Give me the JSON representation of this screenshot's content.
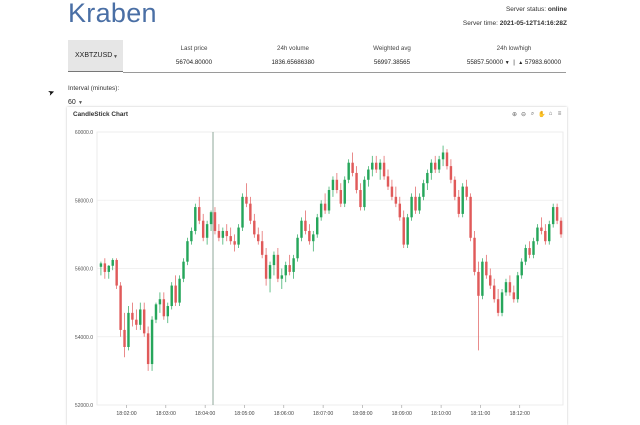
{
  "header": {
    "brand": "Kraben",
    "server_status_label": "Server status:",
    "server_status_value": "online",
    "server_time_label": "Server time:",
    "server_time_value": "2021-05-12T14:16:28Z"
  },
  "pair_selector": {
    "value": "XXBTZUSD"
  },
  "stats": {
    "last_price": {
      "label": "Last price",
      "value": "56704.80000"
    },
    "volume_24h": {
      "label": "24h volume",
      "value": "1836.65686380"
    },
    "weighted_avg": {
      "label": "Weighted avg",
      "value": "56997.38565"
    },
    "low_high_24h": {
      "label": "24h low/high",
      "low": "55857.50000",
      "high": "57983.60000",
      "low_arrow": "▼",
      "high_arrow": "▲"
    }
  },
  "interval": {
    "label": "Interval (minutes):",
    "value": "60"
  },
  "chart": {
    "title": "CandleStick Chart",
    "toolbar_icons": [
      "zoom-in-icon",
      "zoom-out-icon",
      "magnifier-icon",
      "pan-hand-icon",
      "home-icon",
      "menu-icon"
    ],
    "colors": {
      "up": "#26a65b",
      "down": "#e05a5a",
      "crosshair": "#8fa89a"
    }
  },
  "chart_data": {
    "type": "candlestick",
    "title": "CandleStick Chart",
    "ylim": [
      52000,
      60000
    ],
    "y_ticks": [
      "52000.0",
      "54000.0",
      "56000.0",
      "58000.0",
      "60000.0"
    ],
    "x_ticks": [
      "18:02:00",
      "18:03:00",
      "18:04:00",
      "18:05:00",
      "18:06:00",
      "18:07:00",
      "18:08:00",
      "18:09:00",
      "18:10:00",
      "18:11:00",
      "18:12:00"
    ],
    "x_range_minutes": [
      1.25,
      13.1
    ],
    "crosshair_x_minutes": 4.2,
    "candles": [
      [
        1.35,
        56050,
        56200,
        55800,
        56150
      ],
      [
        1.45,
        56150,
        56300,
        55700,
        55900
      ],
      [
        1.55,
        55900,
        56100,
        55700,
        56080
      ],
      [
        1.65,
        56080,
        56300,
        55950,
        56250
      ],
      [
        1.75,
        56250,
        56300,
        55400,
        55500
      ],
      [
        1.85,
        55500,
        55600,
        54000,
        54200
      ],
      [
        1.95,
        54200,
        54700,
        53400,
        53700
      ],
      [
        2.05,
        53700,
        54900,
        53600,
        54700
      ],
      [
        2.15,
        54700,
        55000,
        54300,
        54500
      ],
      [
        2.25,
        54500,
        54800,
        54200,
        54350
      ],
      [
        2.35,
        54350,
        55000,
        54200,
        54800
      ],
      [
        2.45,
        54800,
        55000,
        54000,
        54100
      ],
      [
        2.55,
        54100,
        54300,
        53000,
        53200
      ],
      [
        2.65,
        53200,
        54600,
        53000,
        54500
      ],
      [
        2.75,
        54500,
        55000,
        54400,
        54950
      ],
      [
        2.85,
        54950,
        55300,
        54700,
        55100
      ],
      [
        2.95,
        55100,
        55300,
        54500,
        54600
      ],
      [
        3.05,
        54600,
        55000,
        54400,
        54900
      ],
      [
        3.15,
        54900,
        55600,
        54800,
        55500
      ],
      [
        3.25,
        55500,
        55800,
        54900,
        55000
      ],
      [
        3.35,
        55000,
        55800,
        54900,
        55700
      ],
      [
        3.45,
        55700,
        56300,
        55600,
        56200
      ],
      [
        3.55,
        56200,
        56900,
        56100,
        56800
      ],
      [
        3.65,
        56800,
        57200,
        56700,
        57100
      ],
      [
        3.75,
        57100,
        57900,
        57000,
        57800
      ],
      [
        3.85,
        57800,
        58100,
        57300,
        57400
      ],
      [
        3.95,
        57400,
        57600,
        56800,
        56900
      ],
      [
        4.05,
        56900,
        57400,
        56700,
        57300
      ],
      [
        4.15,
        57300,
        57700,
        57100,
        57650
      ],
      [
        4.25,
        57650,
        57800,
        57000,
        57100
      ],
      [
        4.35,
        57100,
        57300,
        56800,
        56900
      ],
      [
        4.45,
        56900,
        57200,
        56700,
        57100
      ],
      [
        4.55,
        57100,
        57300,
        56800,
        56950
      ],
      [
        4.65,
        56950,
        57200,
        56700,
        56800
      ],
      [
        4.75,
        56800,
        57000,
        56500,
        56700
      ],
      [
        4.85,
        56700,
        57300,
        56600,
        57200
      ],
      [
        4.95,
        57200,
        58200,
        57100,
        58100
      ],
      [
        5.05,
        58100,
        58500,
        57800,
        57900
      ],
      [
        5.15,
        57900,
        58100,
        57300,
        57400
      ],
      [
        5.25,
        57400,
        57600,
        56900,
        57000
      ],
      [
        5.35,
        57000,
        57200,
        56700,
        56800
      ],
      [
        5.45,
        56800,
        57100,
        56300,
        56400
      ],
      [
        5.55,
        56400,
        56600,
        55500,
        55700
      ],
      [
        5.65,
        55700,
        56200,
        55300,
        56100
      ],
      [
        5.75,
        56100,
        56500,
        55800,
        56400
      ],
      [
        5.85,
        56400,
        56600,
        55600,
        55700
      ],
      [
        5.95,
        55700,
        56000,
        55400,
        55800
      ],
      [
        6.05,
        55800,
        56200,
        55600,
        56100
      ],
      [
        6.15,
        56100,
        56400,
        55800,
        55900
      ],
      [
        6.25,
        55900,
        56400,
        55700,
        56300
      ],
      [
        6.35,
        56300,
        57000,
        56200,
        56900
      ],
      [
        6.45,
        56900,
        57500,
        56800,
        57400
      ],
      [
        6.55,
        57400,
        57700,
        57000,
        57100
      ],
      [
        6.65,
        57100,
        57300,
        56700,
        56800
      ],
      [
        6.75,
        56800,
        57100,
        56500,
        57000
      ],
      [
        6.85,
        57000,
        57600,
        56900,
        57500
      ],
      [
        6.95,
        57500,
        58000,
        57400,
        57900
      ],
      [
        7.05,
        57900,
        58200,
        57600,
        57700
      ],
      [
        7.15,
        57700,
        58400,
        57600,
        58300
      ],
      [
        7.25,
        58300,
        58700,
        58100,
        58600
      ],
      [
        7.35,
        58600,
        58800,
        58200,
        58300
      ],
      [
        7.45,
        58300,
        58500,
        57800,
        57900
      ],
      [
        7.55,
        57900,
        58700,
        57800,
        58600
      ],
      [
        7.65,
        58600,
        59200,
        58500,
        59100
      ],
      [
        7.75,
        59100,
        59400,
        58700,
        58800
      ],
      [
        7.85,
        58800,
        59000,
        58200,
        58300
      ],
      [
        7.95,
        58300,
        58500,
        57700,
        57800
      ],
      [
        8.05,
        57800,
        58700,
        57700,
        58600
      ],
      [
        8.15,
        58600,
        59000,
        58400,
        58900
      ],
      [
        8.25,
        58900,
        59300,
        58700,
        59100
      ],
      [
        8.35,
        59100,
        59300,
        58800,
        58900
      ],
      [
        8.45,
        58900,
        59200,
        58600,
        59100
      ],
      [
        8.55,
        59100,
        59300,
        58600,
        58700
      ],
      [
        8.65,
        58700,
        58900,
        58300,
        58400
      ],
      [
        8.75,
        58400,
        58600,
        58000,
        58100
      ],
      [
        8.85,
        58100,
        58400,
        57800,
        57900
      ],
      [
        8.95,
        57900,
        58100,
        57400,
        57500
      ],
      [
        9.05,
        57500,
        57700,
        56600,
        56700
      ],
      [
        9.15,
        56700,
        57600,
        56600,
        57500
      ],
      [
        9.25,
        57500,
        58200,
        57400,
        58100
      ],
      [
        9.35,
        58100,
        58400,
        57600,
        57700
      ],
      [
        9.45,
        57700,
        58200,
        57600,
        58100
      ],
      [
        9.55,
        58100,
        58600,
        58000,
        58500
      ],
      [
        9.65,
        58500,
        58900,
        58300,
        58800
      ],
      [
        9.75,
        58800,
        59200,
        58600,
        59100
      ],
      [
        9.85,
        59100,
        59300,
        58800,
        58900
      ],
      [
        9.95,
        58900,
        59300,
        58800,
        59200
      ],
      [
        10.05,
        59200,
        59600,
        59000,
        59400
      ],
      [
        10.15,
        59400,
        59500,
        58900,
        59000
      ],
      [
        10.25,
        59000,
        59200,
        58500,
        58600
      ],
      [
        10.35,
        58600,
        58700,
        58000,
        58100
      ],
      [
        10.45,
        58100,
        58300,
        57500,
        57600
      ],
      [
        10.55,
        57600,
        58500,
        57500,
        58400
      ],
      [
        10.65,
        58400,
        58600,
        58000,
        58100
      ],
      [
        10.75,
        58100,
        58200,
        56800,
        56900
      ],
      [
        10.85,
        56900,
        57100,
        55800,
        55900
      ],
      [
        10.95,
        55900,
        56200,
        53600,
        55200
      ],
      [
        11.05,
        55200,
        56300,
        55100,
        56200
      ],
      [
        11.15,
        56200,
        56400,
        55700,
        55800
      ],
      [
        11.25,
        55800,
        56000,
        55400,
        55500
      ],
      [
        11.35,
        55500,
        55700,
        55000,
        55100
      ],
      [
        11.45,
        55100,
        55400,
        54600,
        54700
      ],
      [
        11.55,
        54700,
        55400,
        54600,
        55300
      ],
      [
        11.65,
        55300,
        55700,
        55200,
        55600
      ],
      [
        11.75,
        55600,
        55800,
        55200,
        55300
      ],
      [
        11.85,
        55300,
        55500,
        55000,
        55100
      ],
      [
        11.95,
        55100,
        55900,
        55000,
        55800
      ],
      [
        12.05,
        55800,
        56300,
        55700,
        56200
      ],
      [
        12.15,
        56200,
        56700,
        56100,
        56600
      ],
      [
        12.25,
        56600,
        56800,
        56300,
        56400
      ],
      [
        12.35,
        56400,
        56900,
        56300,
        56800
      ],
      [
        12.45,
        56800,
        57300,
        56700,
        57200
      ],
      [
        12.55,
        57200,
        57500,
        57000,
        57100
      ],
      [
        12.65,
        57100,
        57300,
        56700,
        56800
      ],
      [
        12.75,
        56800,
        57400,
        56700,
        57300
      ],
      [
        12.85,
        57300,
        57900,
        57200,
        57800
      ],
      [
        12.95,
        57800,
        57900,
        57300,
        57400
      ],
      [
        13.05,
        57400,
        57500,
        56900,
        57000
      ]
    ]
  }
}
